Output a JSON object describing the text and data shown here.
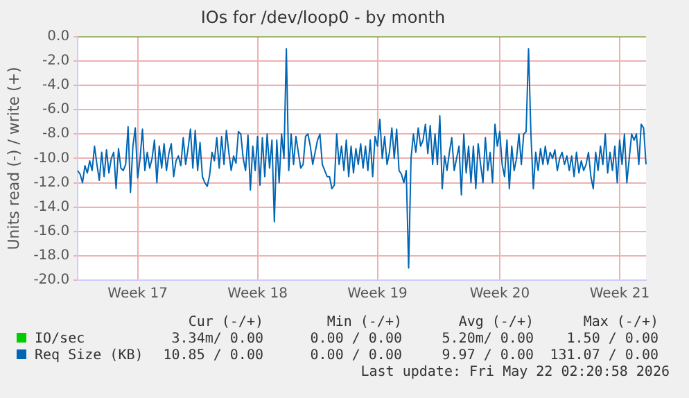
{
  "chart_data": {
    "type": "line",
    "title": "IOs for /dev/loop0 - by month",
    "ylabel": "Units read (-) / write (+)",
    "categories": [
      null,
      null,
      null,
      null,
      null,
      null,
      null,
      null,
      null,
      null,
      null,
      null,
      null,
      null,
      null,
      null,
      null,
      null,
      null,
      null,
      null,
      null,
      null,
      null,
      null,
      "Week 17",
      null,
      null,
      null,
      null,
      null,
      null,
      null,
      null,
      null,
      null,
      null,
      null,
      null,
      null,
      null,
      null,
      null,
      null,
      null,
      null,
      null,
      null,
      null,
      null,
      null,
      null,
      null,
      null,
      null,
      null,
      null,
      null,
      null,
      null,
      null,
      null,
      null,
      null,
      null,
      null,
      null,
      null,
      null,
      null,
      null,
      null,
      null,
      null,
      null,
      "Week 18",
      null,
      null,
      null,
      null,
      null,
      null,
      null,
      null,
      null,
      null,
      null,
      null,
      null,
      null,
      null,
      null,
      null,
      null,
      null,
      null,
      null,
      null,
      null,
      null,
      null,
      null,
      null,
      null,
      null,
      null,
      null,
      null,
      null,
      null,
      null,
      null,
      null,
      null,
      null,
      null,
      null,
      null,
      null,
      null,
      null,
      null,
      null,
      null,
      null,
      "Week 19",
      null,
      null,
      null,
      null,
      null,
      null,
      null,
      null,
      null,
      null,
      null,
      null,
      null,
      null,
      null,
      null,
      null,
      null,
      null,
      null,
      null,
      null,
      null,
      null,
      null,
      null,
      null,
      null,
      null,
      null,
      null,
      null,
      null,
      null,
      null,
      null,
      null,
      null,
      null,
      null,
      null,
      null,
      null,
      null,
      null,
      null,
      null,
      null,
      null,
      null,
      "Week 20",
      null,
      null,
      null,
      null,
      null,
      null,
      null,
      null,
      null,
      null,
      null,
      null,
      null,
      null,
      null,
      null,
      null,
      null,
      null,
      null,
      null,
      null,
      null,
      null,
      null,
      null,
      null,
      null,
      null,
      null,
      null,
      null,
      null,
      null,
      null,
      null,
      null,
      null,
      null,
      null,
      null,
      null,
      null,
      null,
      null,
      null,
      null,
      null,
      null,
      "Week 21",
      null,
      null,
      null,
      null,
      null,
      null,
      null,
      null,
      null,
      null,
      null
    ],
    "series": [
      {
        "name": "IO/sec",
        "color": "#00cc00",
        "values": [
          0,
          0,
          0,
          0,
          0,
          0,
          0,
          0,
          0,
          0,
          0,
          0,
          0,
          0,
          0,
          0,
          0,
          0,
          0,
          0,
          0,
          0,
          0,
          0,
          0,
          0,
          0,
          0,
          0,
          0,
          0,
          0,
          0,
          0,
          0,
          0,
          0,
          0,
          0,
          0,
          0,
          0,
          0,
          0,
          0,
          0,
          0,
          0,
          0,
          0,
          0,
          0,
          0,
          0,
          0,
          0,
          0,
          0,
          0,
          0,
          0,
          0,
          0,
          0,
          0,
          0,
          0,
          0,
          0,
          0,
          0,
          0,
          0,
          0,
          0,
          0,
          0,
          0,
          0,
          0,
          0,
          0,
          0,
          0,
          0,
          0,
          0,
          0,
          0,
          0,
          0,
          0,
          0,
          0,
          0,
          0,
          0,
          0,
          0,
          0,
          0,
          0,
          0,
          0,
          0,
          0,
          0,
          0,
          0,
          0,
          0,
          0,
          0,
          0,
          0,
          0,
          0,
          0,
          0,
          0,
          0,
          0,
          0,
          0,
          0,
          0,
          0,
          0,
          0,
          0,
          0,
          0,
          0,
          0,
          0,
          0,
          0,
          0,
          0,
          0,
          0,
          0,
          0,
          0,
          0,
          0,
          0,
          0,
          0,
          0,
          0,
          0,
          0,
          0,
          0,
          0,
          0,
          0,
          0,
          0,
          0,
          0,
          0,
          0,
          0,
          0,
          0,
          0,
          0,
          0,
          0,
          0,
          0,
          0,
          0,
          0,
          0,
          0,
          0,
          0,
          0,
          0,
          0,
          0,
          0,
          0,
          0,
          0,
          0,
          0,
          0,
          0,
          0,
          0,
          0,
          0,
          0,
          0,
          0,
          0,
          0,
          0,
          0,
          0,
          0,
          0,
          0,
          0,
          0,
          0,
          0,
          0,
          0,
          0,
          0,
          0,
          0,
          0,
          0,
          0,
          0,
          0,
          0,
          0,
          0,
          0,
          0,
          0,
          0,
          0,
          0,
          0,
          0,
          0,
          0,
          0,
          0,
          0
        ]
      },
      {
        "name": "Req Size (KB)",
        "color": "#0066b3",
        "values": [
          -11,
          -11.3,
          -12,
          -10.6,
          -11.2,
          -10.2,
          -11,
          -9,
          -10.5,
          -11.8,
          -9.5,
          -11.5,
          -9.3,
          -11.2,
          -10,
          -9.5,
          -12.5,
          -9.2,
          -10.8,
          -11,
          -10.5,
          -7.4,
          -12.8,
          -9,
          -7.5,
          -11.6,
          -10,
          -7.6,
          -11,
          -9.5,
          -10.8,
          -10,
          -8.5,
          -12,
          -9,
          -10.8,
          -8.8,
          -11,
          -9.6,
          -8.8,
          -11.5,
          -10.2,
          -9.8,
          -10.6,
          -8.3,
          -10.5,
          -9.2,
          -7.6,
          -10.8,
          -7.7,
          -11,
          -8.7,
          -11.5,
          -12,
          -12.3,
          -11.4,
          -9.5,
          -10.2,
          -8.3,
          -10.8,
          -8.2,
          -10.5,
          -7.7,
          -9.5,
          -11,
          -9.8,
          -10.4,
          -7.8,
          -8,
          -10,
          -11,
          -8.1,
          -12.6,
          -9,
          -11,
          -8.2,
          -12.2,
          -8.3,
          -11.5,
          -8,
          -10.8,
          -8.5,
          -15.2,
          -8.5,
          -12,
          -8,
          -10,
          -1,
          -11,
          -8,
          -10.5,
          -8.2,
          -9.5,
          -10.8,
          -10.5,
          -8.2,
          -8,
          -9,
          -10.5,
          -9.5,
          -8.5,
          -8,
          -10.5,
          -11,
          -11.5,
          -11.5,
          -12.5,
          -12.2,
          -8,
          -10.5,
          -9,
          -11,
          -8.5,
          -11.5,
          -9,
          -11.2,
          -9.2,
          -10.5,
          -8.8,
          -10.8,
          -9,
          -11,
          -8.5,
          -11.5,
          -8.2,
          -9,
          -6.8,
          -10,
          -8.2,
          -10.5,
          -9.5,
          -7.5,
          -10,
          -7.6,
          -11,
          -11.3,
          -12,
          -11,
          -19,
          -10,
          -8,
          -9.5,
          -7.5,
          -9,
          -8.5,
          -7.2,
          -9.6,
          -7.3,
          -10.5,
          -8,
          -10.5,
          -6.5,
          -12.5,
          -9.8,
          -11,
          -9.5,
          -8.3,
          -11,
          -10,
          -9,
          -13,
          -8,
          -11.2,
          -9,
          -12,
          -9,
          -12.5,
          -8.8,
          -10.5,
          -12,
          -8.3,
          -11,
          -9.5,
          -12,
          -7.2,
          -9,
          -7.8,
          -10.5,
          -11.5,
          -8.5,
          -12.5,
          -9,
          -11,
          -10,
          -8,
          -10.5,
          -8,
          -7.8,
          -1,
          -8,
          -12.5,
          -9.5,
          -11,
          -9.2,
          -10.5,
          -9,
          -10.5,
          -9.5,
          -10,
          -9.3,
          -11,
          -10,
          -9.5,
          -10.5,
          -9.8,
          -11,
          -9.8,
          -11.5,
          -9.5,
          -11.2,
          -10.2,
          -11,
          -10.5,
          -9.5,
          -11.5,
          -12.5,
          -9.5,
          -11,
          -9,
          -10.5,
          -8,
          -11.2,
          -9.5,
          -11,
          -9,
          -12,
          -8.5,
          -10.5,
          -8,
          -12,
          -10,
          -8,
          -8.5,
          -8,
          -10.5,
          -7.2,
          -7.5,
          -10.5
        ]
      }
    ],
    "ylim": [
      -20,
      0
    ],
    "yticks": [
      {
        "value": -20,
        "label": "-20.0"
      },
      {
        "value": -18,
        "label": "-18.0"
      },
      {
        "value": -16,
        "label": "-16.0"
      },
      {
        "value": -14,
        "label": "-14.0"
      },
      {
        "value": -12,
        "label": "-12.0"
      },
      {
        "value": -10,
        "label": "-10.0"
      },
      {
        "value": -8,
        "label": "-8.0"
      },
      {
        "value": -6,
        "label": "-6.0"
      },
      {
        "value": -4,
        "label": "-4.0"
      },
      {
        "value": -2,
        "label": "-2.0"
      },
      {
        "value": 0,
        "label": "0.0"
      }
    ],
    "grid": true,
    "legend": "bottom",
    "marker": "none",
    "line_style": "solid",
    "annotations": [
      "Cur (-/+)",
      "Min (-/+)",
      "Avg (-/+)",
      "Max (-/+)",
      "3.34m/ 0.00",
      "0.00 / 0.00",
      "5.20m/ 0.00",
      "1.50 / 0.00",
      "10.85 / 0.00",
      "0.00 / 0.00",
      "9.97 / 0.00",
      "131.07 / 0.00",
      "Last update: Fri May 22 02:20:58 2026"
    ]
  }
}
